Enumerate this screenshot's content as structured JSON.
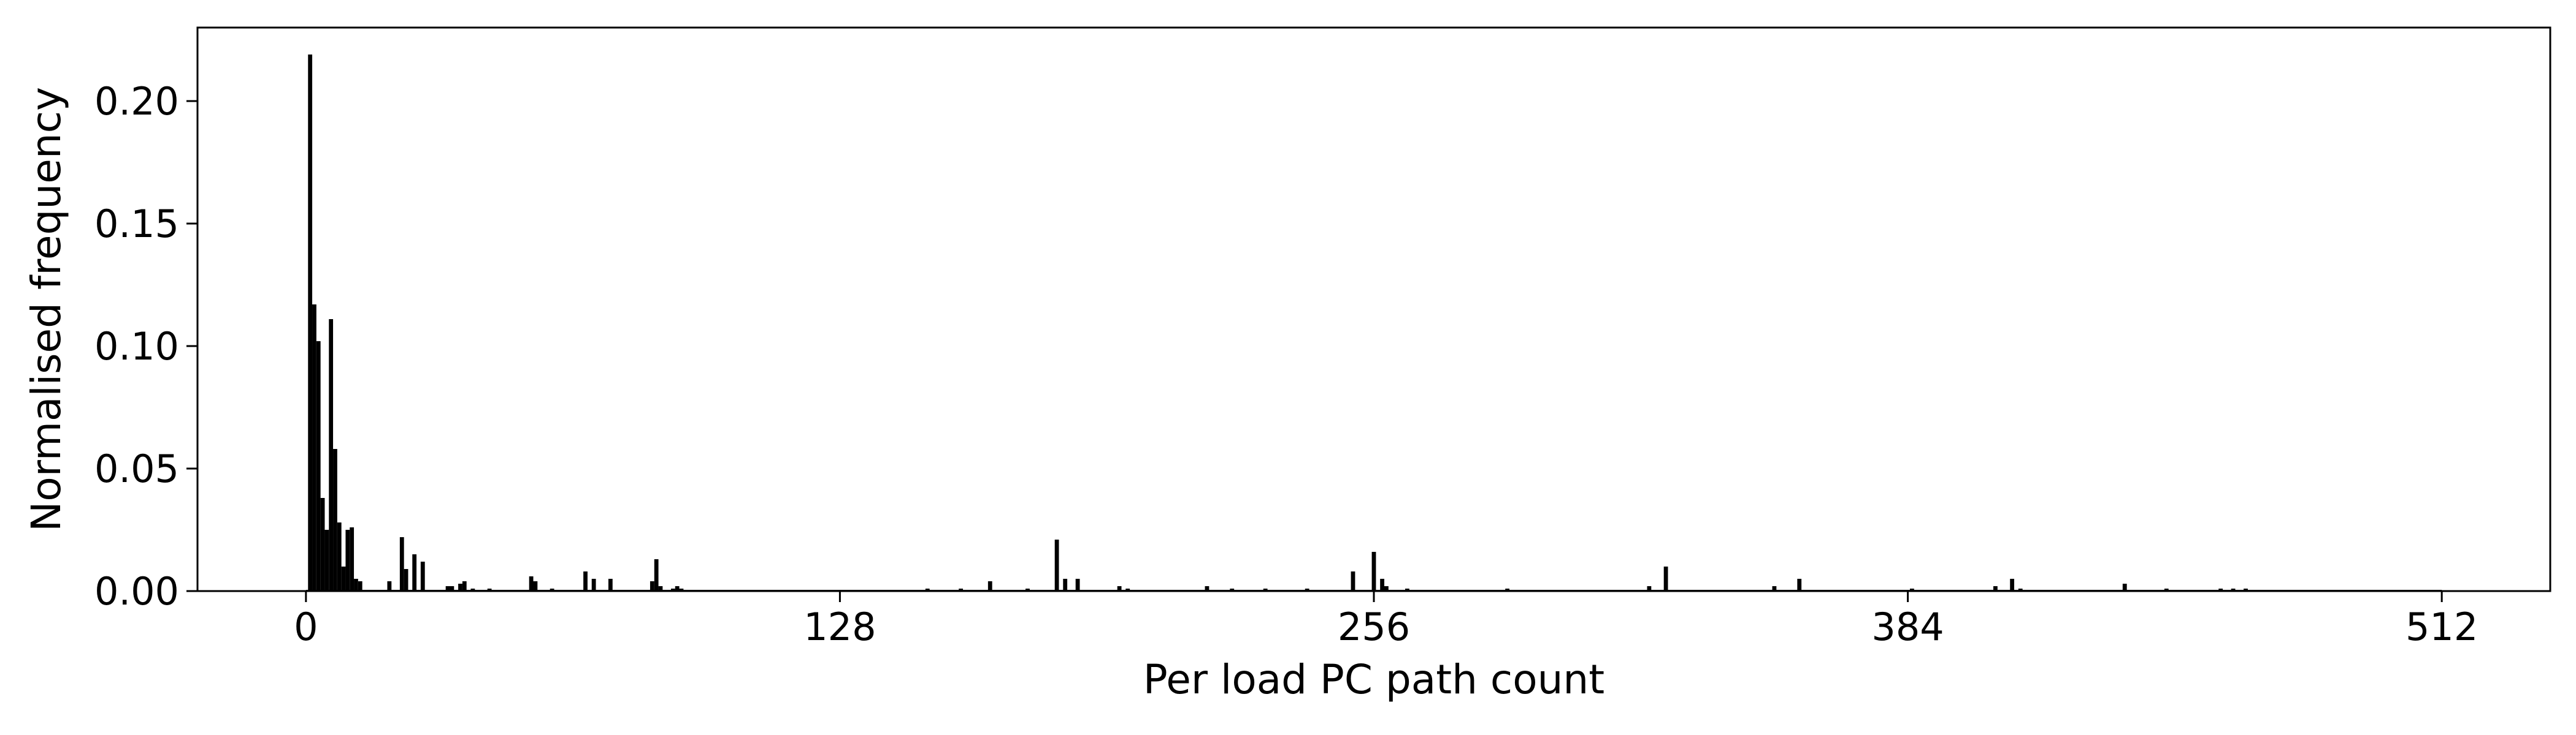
{
  "chart_data": {
    "type": "bar",
    "title": "",
    "xlabel": "Per load PC path count",
    "ylabel": "Normalised frequency",
    "xlim": [
      -26,
      538
    ],
    "ylim": [
      0,
      0.23
    ],
    "xticks": [
      0,
      128,
      256,
      384,
      512
    ],
    "xtick_labels": [
      "0",
      "128",
      "256",
      "384",
      "512"
    ],
    "yticks": [
      0,
      0.05,
      0.1,
      0.15,
      0.2
    ],
    "ytick_labels": [
      "0.00",
      "0.05",
      "0.10",
      "0.15",
      "0.20"
    ],
    "grid": false,
    "legend": "none",
    "bar_color": "#000000",
    "bar_width": 1,
    "series": [
      {
        "points": [
          [
            1,
            0.219
          ],
          [
            2,
            0.117
          ],
          [
            3,
            0.102
          ],
          [
            4,
            0.038
          ],
          [
            5,
            0.025
          ],
          [
            6,
            0.111
          ],
          [
            7,
            0.058
          ],
          [
            8,
            0.028
          ],
          [
            9,
            0.01
          ],
          [
            10,
            0.025
          ],
          [
            11,
            0.026
          ],
          [
            12,
            0.005
          ],
          [
            13,
            0.004
          ],
          [
            20,
            0.004
          ],
          [
            23,
            0.022
          ],
          [
            24,
            0.009
          ],
          [
            26,
            0.015
          ],
          [
            28,
            0.012
          ],
          [
            34,
            0.002
          ],
          [
            35,
            0.002
          ],
          [
            37,
            0.003
          ],
          [
            38,
            0.004
          ],
          [
            40,
            0.001
          ],
          [
            44,
            0.001
          ],
          [
            54,
            0.006
          ],
          [
            55,
            0.004
          ],
          [
            59,
            0.001
          ],
          [
            67,
            0.008
          ],
          [
            69,
            0.005
          ],
          [
            73,
            0.005
          ],
          [
            83,
            0.004
          ],
          [
            84,
            0.013
          ],
          [
            85,
            0.002
          ],
          [
            88,
            0.001
          ],
          [
            89,
            0.002
          ],
          [
            90,
            0.001
          ],
          [
            149,
            0.001
          ],
          [
            157,
            0.001
          ],
          [
            164,
            0.004
          ],
          [
            173,
            0.001
          ],
          [
            180,
            0.021
          ],
          [
            182,
            0.005
          ],
          [
            185,
            0.005
          ],
          [
            195,
            0.002
          ],
          [
            197,
            0.001
          ],
          [
            216,
            0.002
          ],
          [
            222,
            0.001
          ],
          [
            230,
            0.001
          ],
          [
            240,
            0.001
          ],
          [
            251,
            0.008
          ],
          [
            256,
            0.016
          ],
          [
            258,
            0.005
          ],
          [
            259,
            0.002
          ],
          [
            264,
            0.001
          ],
          [
            288,
            0.001
          ],
          [
            322,
            0.002
          ],
          [
            326,
            0.01
          ],
          [
            352,
            0.002
          ],
          [
            358,
            0.005
          ],
          [
            385,
            0.001
          ],
          [
            405,
            0.002
          ],
          [
            409,
            0.005
          ],
          [
            411,
            0.001
          ],
          [
            436,
            0.003
          ],
          [
            446,
            0.001
          ],
          [
            459,
            0.001
          ],
          [
            462,
            0.001
          ],
          [
            465,
            0.001
          ]
        ]
      }
    ]
  }
}
